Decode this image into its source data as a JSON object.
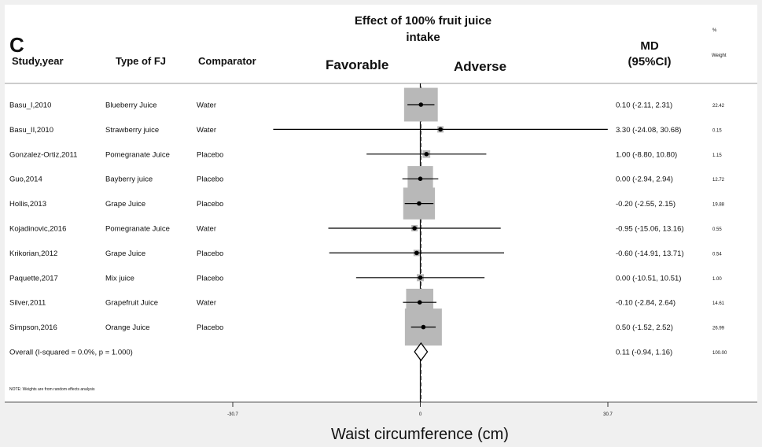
{
  "panel_letter": "C",
  "title_line1": "Effect of 100% fruit juice",
  "title_line2": "intake",
  "headers": {
    "study": "Study,year",
    "type": "Type of FJ",
    "comparator": "Comparator",
    "favorable": "Favorable",
    "adverse": "Adverse",
    "md_line1": "MD",
    "md_line2": "(95%CI)",
    "pct": "%",
    "weight": "Weight"
  },
  "note": "NOTE: Weights are from random effects analysis",
  "xlabel": "Waist circumference (cm)",
  "chart_data": {
    "type": "forest",
    "xlim": [
      -30.7,
      30.7
    ],
    "ticks": [
      {
        "value": -30.7,
        "label": "-30.7"
      },
      {
        "value": 0,
        "label": "0"
      },
      {
        "value": 30.7,
        "label": "30.7"
      }
    ],
    "null_line": 0,
    "studies": [
      {
        "study": "Basu_I,2010",
        "type": "Blueberry Juice",
        "comparator": "Water",
        "md": 0.1,
        "lo": -2.11,
        "hi": 2.31,
        "ci_text": "0.10 (-2.11, 2.31)",
        "weight": 22.42,
        "weight_text": "22.42"
      },
      {
        "study": "Basu_II,2010",
        "type": "Strawberry juice",
        "comparator": "Water",
        "md": 3.3,
        "lo": -24.08,
        "hi": 30.68,
        "ci_text": "3.30 (-24.08, 30.68)",
        "weight": 0.15,
        "weight_text": "0.15"
      },
      {
        "study": "Gonzalez-Ortiz,2011",
        "type": "Pomegranate Juice",
        "comparator": "Placebo",
        "md": 1.0,
        "lo": -8.8,
        "hi": 10.8,
        "ci_text": "1.00 (-8.80, 10.80)",
        "weight": 1.15,
        "weight_text": "1.15"
      },
      {
        "study": "Guo,2014",
        "type": "Bayberry juice",
        "comparator": "Placebo",
        "md": 0.0,
        "lo": -2.94,
        "hi": 2.94,
        "ci_text": "0.00 (-2.94, 2.94)",
        "weight": 12.72,
        "weight_text": "12.72"
      },
      {
        "study": "Hollis,2013",
        "type": "Grape Juice",
        "comparator": "Placebo",
        "md": -0.2,
        "lo": -2.55,
        "hi": 2.15,
        "ci_text": "-0.20 (-2.55, 2.15)",
        "weight": 19.88,
        "weight_text": "19.88"
      },
      {
        "study": "Kojadinovic,2016",
        "type": "Pomegranate Juice",
        "comparator": "Water",
        "md": -0.95,
        "lo": -15.06,
        "hi": 13.16,
        "ci_text": "-0.95 (-15.06, 13.16)",
        "weight": 0.55,
        "weight_text": "0.55"
      },
      {
        "study": "Krikorian,2012",
        "type": "Grape Juice",
        "comparator": "Placebo",
        "md": -0.6,
        "lo": -14.91,
        "hi": 13.71,
        "ci_text": "-0.60 (-14.91, 13.71)",
        "weight": 0.54,
        "weight_text": "0.54"
      },
      {
        "study": "Paquette,2017",
        "type": "Mix juice",
        "comparator": "Placebo",
        "md": 0.0,
        "lo": -10.51,
        "hi": 10.51,
        "ci_text": "0.00 (-10.51, 10.51)",
        "weight": 1.0,
        "weight_text": "1.00"
      },
      {
        "study": "Silver,2011",
        "type": "Grapefruit Juice",
        "comparator": "Water",
        "md": -0.1,
        "lo": -2.84,
        "hi": 2.64,
        "ci_text": "-0.10 (-2.84, 2.64)",
        "weight": 14.61,
        "weight_text": "14.61"
      },
      {
        "study": "Simpson,2016",
        "type": "Orange Juice",
        "comparator": "Placebo",
        "md": 0.5,
        "lo": -1.52,
        "hi": 2.52,
        "ci_text": "0.50 (-1.52, 2.52)",
        "weight": 26.99,
        "weight_text": "26.99"
      }
    ],
    "overall": {
      "label": "Overall  (I-squared = 0.0%, p = 1.000)",
      "md": 0.11,
      "lo": -0.94,
      "hi": 1.16,
      "ci_text": "0.11 (-0.94, 1.16)",
      "weight": 100.0,
      "weight_text": "100.00"
    }
  }
}
